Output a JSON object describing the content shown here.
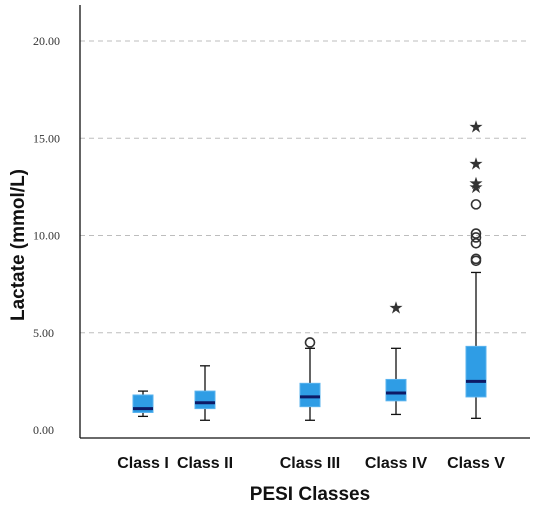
{
  "chart_data": {
    "type": "boxplot",
    "title": "",
    "xlabel": "PESI Classes",
    "ylabel": "Lactate (mmol/L)",
    "ylim": [
      0,
      22
    ],
    "yticks": [
      {
        "value": 0,
        "label": "0.00"
      },
      {
        "value": 5,
        "label": "5.00"
      },
      {
        "value": 10,
        "label": "10.00"
      },
      {
        "value": 15,
        "label": "15.00"
      },
      {
        "value": 20,
        "label": "20.00"
      }
    ],
    "gridlines": [
      5,
      10,
      15,
      20
    ],
    "grid": "horizontal dashed",
    "categories": [
      "Class I",
      "Class II",
      "Class III",
      "Class IV",
      "Class V"
    ],
    "boxes": [
      {
        "category": "Class I",
        "whisker_low": 0.7,
        "q1": 0.9,
        "median": 1.1,
        "q3": 1.8,
        "whisker_high": 2.0,
        "outliers": [],
        "extremes": []
      },
      {
        "category": "Class II",
        "whisker_low": 0.5,
        "q1": 1.1,
        "median": 1.4,
        "q3": 2.0,
        "whisker_high": 3.3,
        "outliers": [],
        "extremes": []
      },
      {
        "category": "Class III",
        "whisker_low": 0.5,
        "q1": 1.2,
        "median": 1.7,
        "q3": 2.4,
        "whisker_high": 4.2,
        "outliers": [
          4.5
        ],
        "extremes": []
      },
      {
        "category": "Class IV",
        "whisker_low": 0.8,
        "q1": 1.5,
        "median": 1.9,
        "q3": 2.6,
        "whisker_high": 4.2,
        "outliers": [],
        "extremes": [
          6.3
        ]
      },
      {
        "category": "Class V",
        "whisker_low": 0.6,
        "q1": 1.7,
        "median": 2.5,
        "q3": 4.3,
        "whisker_high": 8.1,
        "outliers": [
          8.7,
          8.8,
          9.6,
          9.9,
          10.1,
          11.6
        ],
        "extremes": [
          12.5,
          12.7,
          13.7,
          15.6
        ]
      }
    ],
    "colors": {
      "box": "#2f9de5",
      "box_light": "#5ab3ee",
      "median": "#0d1a66",
      "whisker": "#111111",
      "grid": "#bdbdbd",
      "marker": "#333333"
    }
  }
}
